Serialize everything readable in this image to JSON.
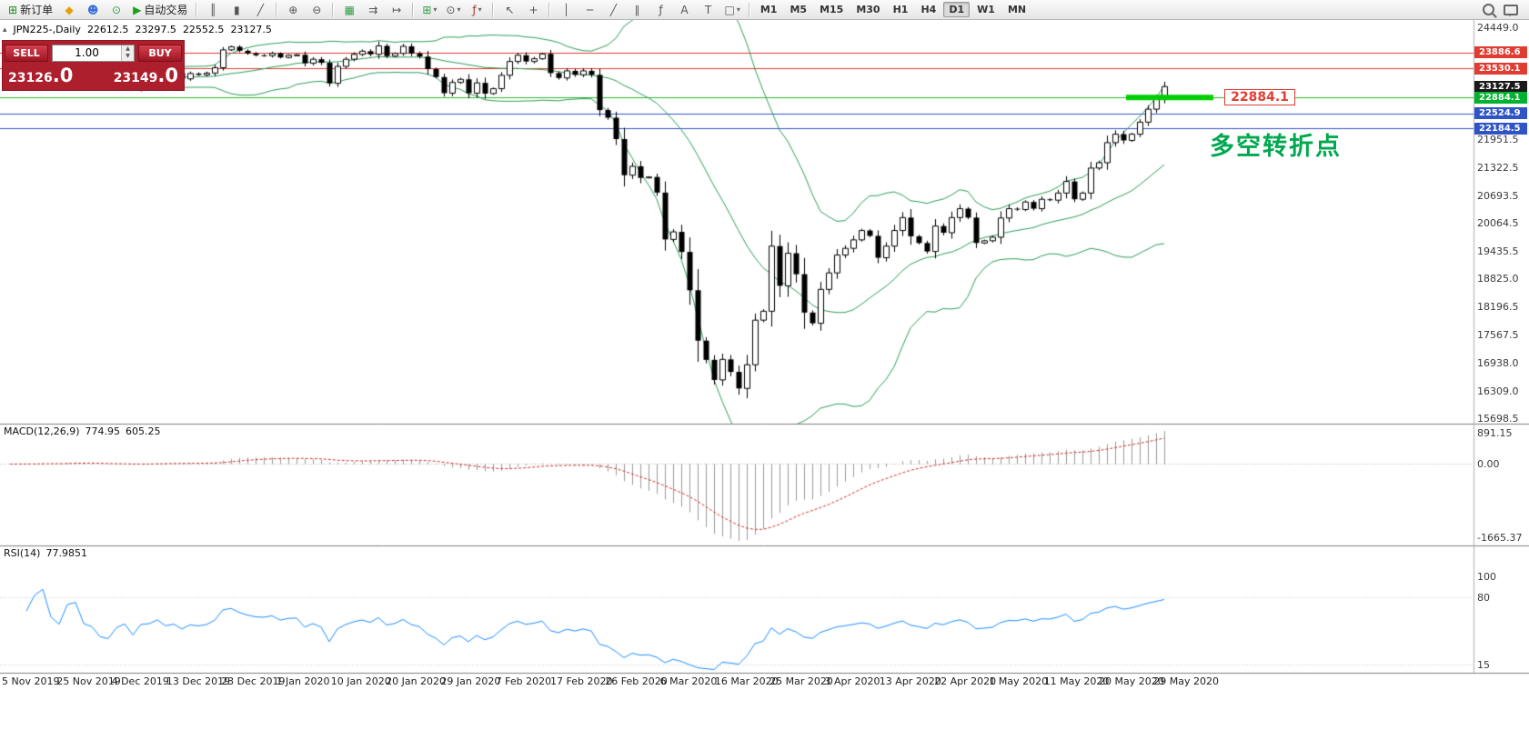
{
  "toolbar": {
    "caret_glyph": "▾",
    "left_groups": [
      {
        "items": [
          {
            "name": "new-order-button",
            "glyph": "⊞",
            "glyph_color": "#1a8f1a",
            "label": "新订单"
          },
          {
            "name": "metaeditor-button",
            "glyph": "◆",
            "glyph_color": "#e8a000"
          },
          {
            "name": "community-button",
            "glyph": "☻",
            "glyph_color": "#3a6fd8"
          },
          {
            "name": "data-window-button",
            "glyph": "⊙",
            "glyph_color": "#2f9e44"
          },
          {
            "name": "autotrading-button",
            "glyph": "▶",
            "glyph_color": "#18a018",
            "label": "自动交易"
          }
        ]
      },
      {
        "items": [
          {
            "name": "bar-chart-button",
            "glyph": "║"
          },
          {
            "name": "candlestick-chart-button",
            "glyph": "▮"
          },
          {
            "name": "line-chart-button",
            "glyph": "╱"
          }
        ]
      },
      {
        "items": [
          {
            "name": "zoom-in-button",
            "glyph": "⊕"
          },
          {
            "name": "zoom-out-button",
            "glyph": "⊖"
          }
        ]
      },
      {
        "items": [
          {
            "name": "tile-windows-button",
            "glyph": "▦",
            "glyph_color": "#2f9e44"
          },
          {
            "name": "auto-scroll-button",
            "glyph": "⇉"
          },
          {
            "name": "chart-shift-button",
            "glyph": "↦"
          }
        ]
      },
      {
        "items": [
          {
            "name": "new-chart-button",
            "glyph": "⊞",
            "glyph_color": "#2f9e44",
            "caret": true
          },
          {
            "name": "profiles-button",
            "glyph": "⊙",
            "caret": true
          },
          {
            "name": "indicators-button",
            "glyph": "ƒ",
            "glyph_color": "#b03030",
            "caret": true
          }
        ]
      },
      {
        "items": [
          {
            "name": "cursor-button",
            "glyph": "↖"
          },
          {
            "name": "crosshair-button",
            "glyph": "+"
          }
        ]
      },
      {
        "items": [
          {
            "name": "vertical-line-button",
            "glyph": "│"
          },
          {
            "name": "horizontal-line-button",
            "glyph": "─"
          },
          {
            "name": "trendline-button",
            "glyph": "╱"
          },
          {
            "name": "channel-button",
            "glyph": "∥"
          },
          {
            "name": "fibonacci-button",
            "glyph": "ƒ"
          },
          {
            "name": "text-button",
            "glyph": "A"
          },
          {
            "name": "text-label-button",
            "glyph": "T"
          },
          {
            "name": "arrows-button",
            "glyph": "□",
            "caret": true
          }
        ]
      }
    ],
    "timeframes": [
      {
        "name": "tf-m1",
        "label": "M1"
      },
      {
        "name": "tf-m5",
        "label": "M5"
      },
      {
        "name": "tf-m15",
        "label": "M15"
      },
      {
        "name": "tf-m30",
        "label": "M30"
      },
      {
        "name": "tf-h1",
        "label": "H1"
      },
      {
        "name": "tf-h4",
        "label": "H4"
      },
      {
        "name": "tf-d1",
        "label": "D1",
        "active": true
      },
      {
        "name": "tf-w1",
        "label": "W1"
      },
      {
        "name": "tf-mn",
        "label": "MN"
      }
    ],
    "right_icons": [
      "search-icon",
      "chat-icon"
    ]
  },
  "trade_panel": {
    "sell_label": "SELL",
    "buy_label": "BUY",
    "volume": "1.00",
    "spin_up": "▲",
    "spin_down": "▼",
    "sell_price_main": "23126",
    "sell_price_frac": ".0",
    "buy_price_main": "23149",
    "buy_price_frac": ".0"
  },
  "chart": {
    "header": {
      "collapse_icon": "▴",
      "symbol": "JPN225-,Daily",
      "open": "22612.5",
      "high": "23297.5",
      "low": "22552.5",
      "close": "23127.5"
    },
    "price_scale": {
      "labels": [
        24449.0,
        21951.5,
        21322.5,
        20693.5,
        20064.5,
        19435.5,
        18825.0,
        18196.5,
        17567.5,
        16938.0,
        16309.0,
        15698.5
      ]
    },
    "price_tags": [
      {
        "text": "23886.6",
        "price": 23886.6,
        "color": "#e03c32"
      },
      {
        "text": "23530.1",
        "price": 23530.1,
        "color": "#e03c32"
      },
      {
        "text": "23127.5",
        "price": 23127.5,
        "color": "#1a1a1a"
      },
      {
        "text": "22884.1",
        "price": 22884.1,
        "color": "#00b22d"
      },
      {
        "text": "22524.9",
        "price": 22524.9,
        "color": "#2f54c8"
      },
      {
        "text": "22184.5",
        "price": 22184.5,
        "color": "#2f54c8"
      }
    ],
    "hlines": [
      {
        "price": 23886.6,
        "color": "#e03c32"
      },
      {
        "price": 23530.1,
        "color": "#e03c32"
      },
      {
        "price": 22884.1,
        "color": "#2db82d"
      },
      {
        "price": 22524.9,
        "color": "#2f54c8"
      },
      {
        "price": 22184.5,
        "color": "#2f54c8"
      }
    ],
    "highlight_segment": {
      "price": 22884.1,
      "color": "#00ce00"
    },
    "annotation": {
      "text": "22884.1"
    },
    "note": {
      "text": "多空转折点"
    }
  },
  "chart_data": {
    "type": "candlestick",
    "symbol": "JPN225-",
    "timeframe": "Daily",
    "overlays": [
      "bollinger-bands(20,2)"
    ],
    "first_open": 23250,
    "closes": [
      23280,
      23320,
      23300,
      23350,
      23400,
      23330,
      23300,
      23480,
      23520,
      23340,
      23300,
      23140,
      23100,
      23290,
      23380,
      23110,
      23390,
      23410,
      23530,
      23380,
      23430,
      23300,
      23420,
      23390,
      23430,
      23550,
      23950,
      24020,
      23930,
      23870,
      23830,
      23820,
      23870,
      23780,
      23830,
      23840,
      23650,
      23740,
      23660,
      23200,
      23580,
      23740,
      23850,
      23920,
      23850,
      24040,
      23810,
      23870,
      24030,
      23870,
      23800,
      23520,
      23340,
      22980,
      23220,
      23290,
      22980,
      23210,
      22970,
      23080,
      23380,
      23690,
      23830,
      23690,
      23750,
      23860,
      23430,
      23320,
      23480,
      23390,
      23480,
      23390,
      22600,
      22430,
      21950,
      21140,
      21340,
      21080,
      21100,
      20750,
      19700,
      19870,
      19420,
      18560,
      17430,
      17000,
      16550,
      17010,
      16730,
      16360,
      16890,
      17890,
      18090,
      19550,
      18660,
      19390,
      18920,
      18060,
      17820,
      18580,
      18950,
      19350,
      19500,
      19690,
      19900,
      19780,
      19290,
      19550,
      19900,
      20190,
      19770,
      19620,
      19430,
      20000,
      19850,
      20190,
      20390,
      20190,
      19620,
      19670,
      19750,
      20180,
      20390,
      20370,
      20540,
      20390,
      20600,
      20580,
      20740,
      21000,
      20600,
      20740,
      21300,
      21420,
      21870,
      22060,
      21920,
      22060,
      22330,
      22620,
      22860,
      23127.5
    ]
  },
  "macd_pane": {
    "label": "MACD(12,26,9)",
    "macd_value": "774.95",
    "signal_value": "605.25",
    "scale": [
      "891.15",
      "0.00",
      "-1665.37"
    ]
  },
  "rsi_pane": {
    "label": "RSI(14)",
    "value": "77.9851",
    "scale": [
      "100",
      "80",
      "15"
    ],
    "levels": [
      80,
      15
    ]
  },
  "time_axis": {
    "labels": [
      "5 Nov 2019",
      "25 Nov 2019",
      "4 Dec 2019",
      "13 Dec 2019",
      "23 Dec 2019",
      "1 Jan 2020",
      "10 Jan 2020",
      "20 Jan 2020",
      "29 Jan 2020",
      "7 Feb 2020",
      "17 Feb 2020",
      "26 Feb 2020",
      "6 Mar 2020",
      "16 Mar 2020",
      "25 Mar 2020",
      "3 Apr 2020",
      "13 Apr 2020",
      "22 Apr 2020",
      "1 May 2020",
      "11 May 2020",
      "20 May 2020",
      "29 May 2020"
    ]
  }
}
